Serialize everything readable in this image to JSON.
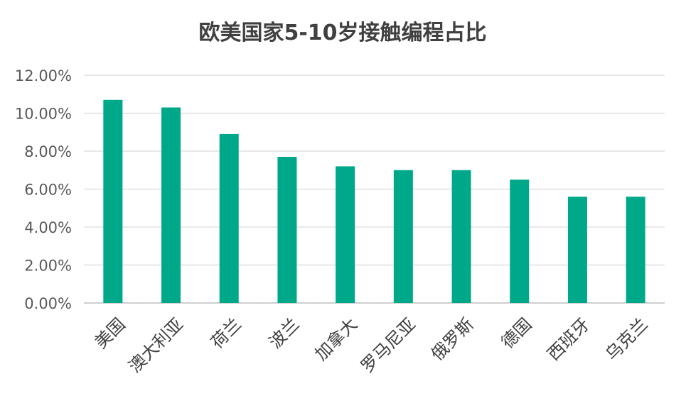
{
  "chart_data": {
    "type": "bar",
    "title": "欧美国家5-10岁接触编程占比",
    "xlabel": "",
    "ylabel": "",
    "categories": [
      "美国",
      "澳大利亚",
      "荷兰",
      "波兰",
      "加拿大",
      "罗马尼亚",
      "俄罗斯",
      "德国",
      "西班牙",
      "乌克兰"
    ],
    "values": [
      10.7,
      10.3,
      8.9,
      7.7,
      7.2,
      7.0,
      7.0,
      6.5,
      5.6,
      5.6
    ],
    "value_unit": "%",
    "ylim": [
      0,
      12
    ],
    "yticks": [
      "0.00%",
      "2.00%",
      "4.00%",
      "6.00%",
      "8.00%",
      "10.00%",
      "12.00%"
    ],
    "grid": true,
    "legend": "none",
    "bar_color": "#00A88A"
  }
}
